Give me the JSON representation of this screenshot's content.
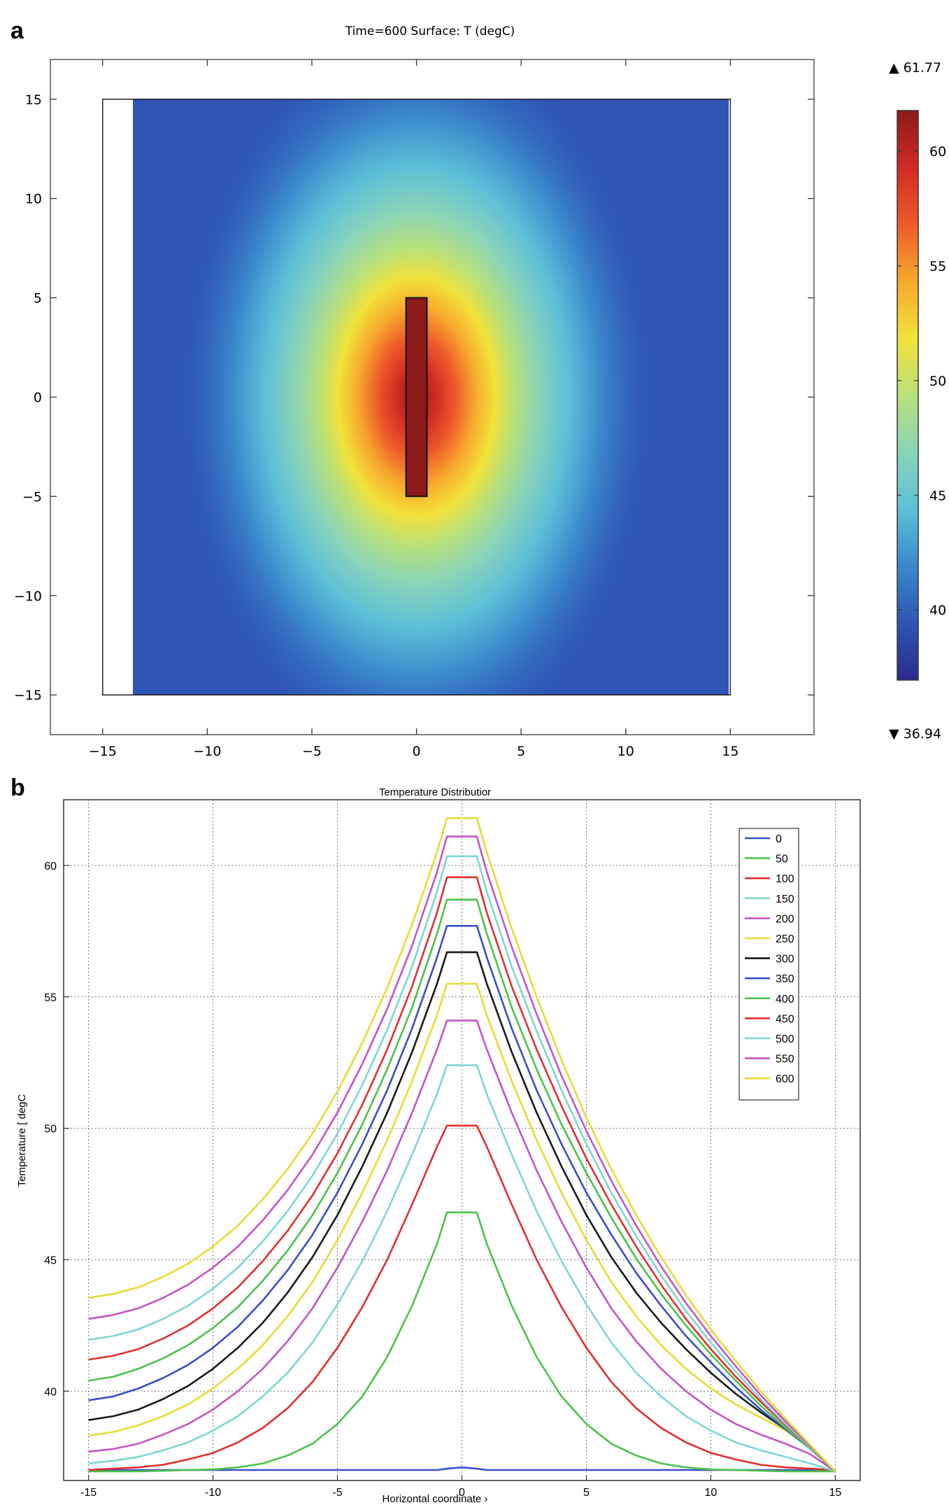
{
  "chart_data": [
    {
      "panel": "a",
      "type": "heatmap",
      "title": "Time=600  Surface: T (degC)",
      "xlabel": "",
      "ylabel": "",
      "xlim": [
        -17.5,
        19
      ],
      "ylim": [
        -17,
        17
      ],
      "domain": {
        "x": [
          -15,
          15
        ],
        "y": [
          -15,
          15
        ]
      },
      "source_rect": {
        "x": [
          -0.5,
          0.5
        ],
        "y": [
          -5,
          5
        ]
      },
      "x_ticks": [
        -15,
        -10,
        -5,
        0,
        5,
        10,
        15
      ],
      "y_ticks": [
        15,
        10,
        5,
        0,
        -5,
        -10,
        -15
      ],
      "x_tick_labels": [
        "−15",
        "−10",
        "−5",
        "0",
        "5",
        "10",
        "15"
      ],
      "y_tick_labels": [
        "15",
        "10",
        "5",
        "0",
        "−5",
        "−10",
        "−15"
      ],
      "colorbar": {
        "max_label": "▲ 61.77",
        "min_label": "▼ 36.94",
        "max": 61.77,
        "min": 36.94,
        "ticks": [
          60,
          55,
          50,
          45,
          40
        ],
        "tick_labels": [
          "60",
          "55",
          "50",
          "45",
          "40"
        ],
        "colormap": [
          "#2a2b8c",
          "#2f55b5",
          "#3a88cc",
          "#5cc0d8",
          "#8ad4b8",
          "#b8e07a",
          "#f2e23a",
          "#f7a92c",
          "#ee5a2a",
          "#d22a24",
          "#8b1a18"
        ]
      }
    },
    {
      "panel": "b",
      "type": "line",
      "title": "Temperature Distributior",
      "xlabel": "Horizontal coordinate ›",
      "ylabel": "Temperature [ degC",
      "xlim": [
        -16,
        16
      ],
      "ylim": [
        36.6,
        62.5
      ],
      "grid": true,
      "legend_position": "top-right",
      "x_ticks": [
        -15,
        -10,
        -5,
        0,
        5,
        10,
        15
      ],
      "y_ticks": [
        40,
        45,
        50,
        55,
        60
      ],
      "x_tick_labels": [
        "-15",
        "-10",
        "-5",
        "0",
        "5",
        "10",
        "15"
      ],
      "y_tick_labels": [
        "40",
        "45",
        "50",
        "55",
        "60"
      ],
      "x": [
        -15,
        -14,
        -13,
        -12,
        -11,
        -10,
        -9,
        -8,
        -7,
        -6,
        -5,
        -4,
        -3,
        -2,
        -1,
        -0.6,
        0,
        0.6,
        1,
        2,
        3,
        4,
        5,
        6,
        7,
        8,
        9,
        10,
        11,
        12,
        13,
        14,
        15
      ],
      "series": [
        {
          "name": "0",
          "color": "#3b4fc8",
          "values": [
            37.0,
            37.0,
            37.0,
            37.0,
            37.0,
            37.0,
            37.0,
            37.0,
            37.0,
            37.0,
            37.0,
            37.0,
            37.0,
            37.0,
            37.0,
            37.05,
            37.1,
            37.05,
            37.0,
            37.0,
            37.0,
            37.0,
            37.0,
            37.0,
            37.0,
            37.0,
            37.0,
            37.0,
            37.0,
            37.0,
            37.0,
            37.0,
            37.0
          ]
        },
        {
          "name": "50",
          "color": "#4cc24c",
          "values": [
            36.95,
            36.95,
            36.95,
            36.97,
            37.0,
            37.02,
            37.1,
            37.25,
            37.55,
            38.0,
            38.75,
            39.8,
            41.3,
            43.25,
            45.6,
            46.8,
            46.8,
            46.8,
            45.6,
            43.25,
            41.3,
            39.8,
            38.75,
            38.0,
            37.55,
            37.25,
            37.1,
            37.02,
            37.0,
            36.97,
            36.95,
            36.95,
            36.95
          ]
        },
        {
          "name": "100",
          "color": "#e03030",
          "values": [
            37.0,
            37.05,
            37.1,
            37.2,
            37.4,
            37.65,
            38.05,
            38.6,
            39.35,
            40.35,
            41.65,
            43.2,
            45.0,
            47.1,
            49.3,
            50.1,
            50.1,
            50.1,
            49.3,
            47.1,
            45.0,
            43.2,
            41.65,
            40.35,
            39.35,
            38.6,
            38.05,
            37.65,
            37.4,
            37.2,
            37.1,
            37.05,
            37.0
          ]
        },
        {
          "name": "150",
          "color": "#7fd6d6",
          "values": [
            37.25,
            37.35,
            37.5,
            37.75,
            38.05,
            38.5,
            39.05,
            39.8,
            40.7,
            41.85,
            43.3,
            44.95,
            46.85,
            49.0,
            51.3,
            52.4,
            52.4,
            52.4,
            51.3,
            49.0,
            46.85,
            44.95,
            43.3,
            41.85,
            40.7,
            39.8,
            39.05,
            38.5,
            38.05,
            37.75,
            37.5,
            37.25,
            36.95
          ]
        },
        {
          "name": "200",
          "color": "#c455c4",
          "values": [
            37.7,
            37.8,
            38.0,
            38.35,
            38.75,
            39.3,
            40.0,
            40.85,
            41.9,
            43.15,
            44.7,
            46.45,
            48.4,
            50.6,
            53.0,
            54.1,
            54.1,
            54.1,
            53.0,
            50.6,
            48.4,
            46.45,
            44.7,
            43.15,
            41.9,
            40.85,
            40.0,
            39.3,
            38.75,
            38.35,
            38.0,
            37.6,
            36.95
          ]
        },
        {
          "name": "250",
          "color": "#e6dc32",
          "values": [
            38.3,
            38.45,
            38.7,
            39.05,
            39.5,
            40.1,
            40.85,
            41.75,
            42.85,
            44.15,
            45.75,
            47.55,
            49.55,
            51.8,
            54.3,
            55.5,
            55.5,
            55.5,
            54.3,
            51.8,
            49.55,
            47.55,
            45.75,
            44.15,
            42.85,
            41.75,
            40.85,
            40.1,
            39.5,
            39.0,
            38.5,
            37.9,
            36.95
          ]
        },
        {
          "name": "300",
          "color": "#1a1a1a",
          "values": [
            38.9,
            39.05,
            39.3,
            39.7,
            40.2,
            40.85,
            41.65,
            42.6,
            43.75,
            45.1,
            46.7,
            48.55,
            50.6,
            52.9,
            55.5,
            56.7,
            56.7,
            56.7,
            55.5,
            52.9,
            50.6,
            48.55,
            46.7,
            45.1,
            43.75,
            42.6,
            41.6,
            40.7,
            39.9,
            39.2,
            38.55,
            37.85,
            36.95
          ]
        },
        {
          "name": "350",
          "color": "#3b4fc8",
          "values": [
            39.65,
            39.8,
            40.1,
            40.5,
            41.0,
            41.65,
            42.45,
            43.45,
            44.6,
            45.95,
            47.55,
            49.4,
            51.45,
            53.8,
            56.5,
            57.7,
            57.7,
            57.7,
            56.5,
            53.8,
            51.45,
            49.4,
            47.55,
            45.95,
            44.5,
            43.25,
            42.1,
            41.1,
            40.15,
            39.3,
            38.55,
            37.8,
            36.95
          ]
        },
        {
          "name": "400",
          "color": "#4cc24c",
          "values": [
            40.4,
            40.55,
            40.85,
            41.25,
            41.75,
            42.4,
            43.2,
            44.2,
            45.35,
            46.7,
            48.3,
            50.15,
            52.25,
            54.6,
            57.4,
            58.7,
            58.7,
            58.7,
            57.4,
            54.6,
            52.25,
            50.15,
            48.3,
            46.6,
            45.05,
            43.7,
            42.5,
            41.4,
            40.4,
            39.45,
            38.6,
            37.8,
            36.95
          ]
        },
        {
          "name": "450",
          "color": "#e03030",
          "values": [
            41.2,
            41.35,
            41.6,
            42.0,
            42.5,
            43.15,
            43.95,
            44.95,
            46.1,
            47.45,
            49.05,
            50.9,
            53.0,
            55.4,
            58.2,
            59.55,
            59.55,
            59.55,
            58.2,
            55.4,
            53.0,
            50.85,
            48.85,
            47.1,
            45.5,
            44.05,
            42.75,
            41.6,
            40.55,
            39.6,
            38.7,
            37.85,
            36.95
          ]
        },
        {
          "name": "500",
          "color": "#7fd6d6",
          "values": [
            41.95,
            42.1,
            42.35,
            42.75,
            43.25,
            43.9,
            44.7,
            45.7,
            46.85,
            48.2,
            49.8,
            51.65,
            53.75,
            56.15,
            59.0,
            60.35,
            60.35,
            60.35,
            59.0,
            56.15,
            53.7,
            51.45,
            49.4,
            47.55,
            45.9,
            44.4,
            43.05,
            41.85,
            40.75,
            39.7,
            38.75,
            37.85,
            36.95
          ]
        },
        {
          "name": "550",
          "color": "#c455c4",
          "values": [
            42.75,
            42.9,
            43.15,
            43.55,
            44.05,
            44.7,
            45.5,
            46.5,
            47.65,
            49.0,
            50.6,
            52.45,
            54.55,
            56.95,
            59.75,
            61.1,
            61.1,
            61.1,
            59.75,
            56.9,
            54.35,
            52.0,
            49.9,
            48.0,
            46.3,
            44.75,
            43.35,
            42.1,
            40.95,
            39.85,
            38.85,
            37.9,
            36.95
          ]
        },
        {
          "name": "600",
          "color": "#e6dc32",
          "values": [
            43.55,
            43.7,
            43.95,
            44.35,
            44.85,
            45.5,
            46.3,
            47.3,
            48.45,
            49.8,
            51.4,
            53.25,
            55.35,
            57.75,
            60.5,
            61.8,
            61.8,
            61.8,
            60.5,
            57.6,
            55.0,
            52.6,
            50.4,
            48.45,
            46.7,
            45.1,
            43.65,
            42.35,
            41.15,
            40.0,
            38.95,
            37.95,
            36.95
          ]
        }
      ]
    }
  ]
}
